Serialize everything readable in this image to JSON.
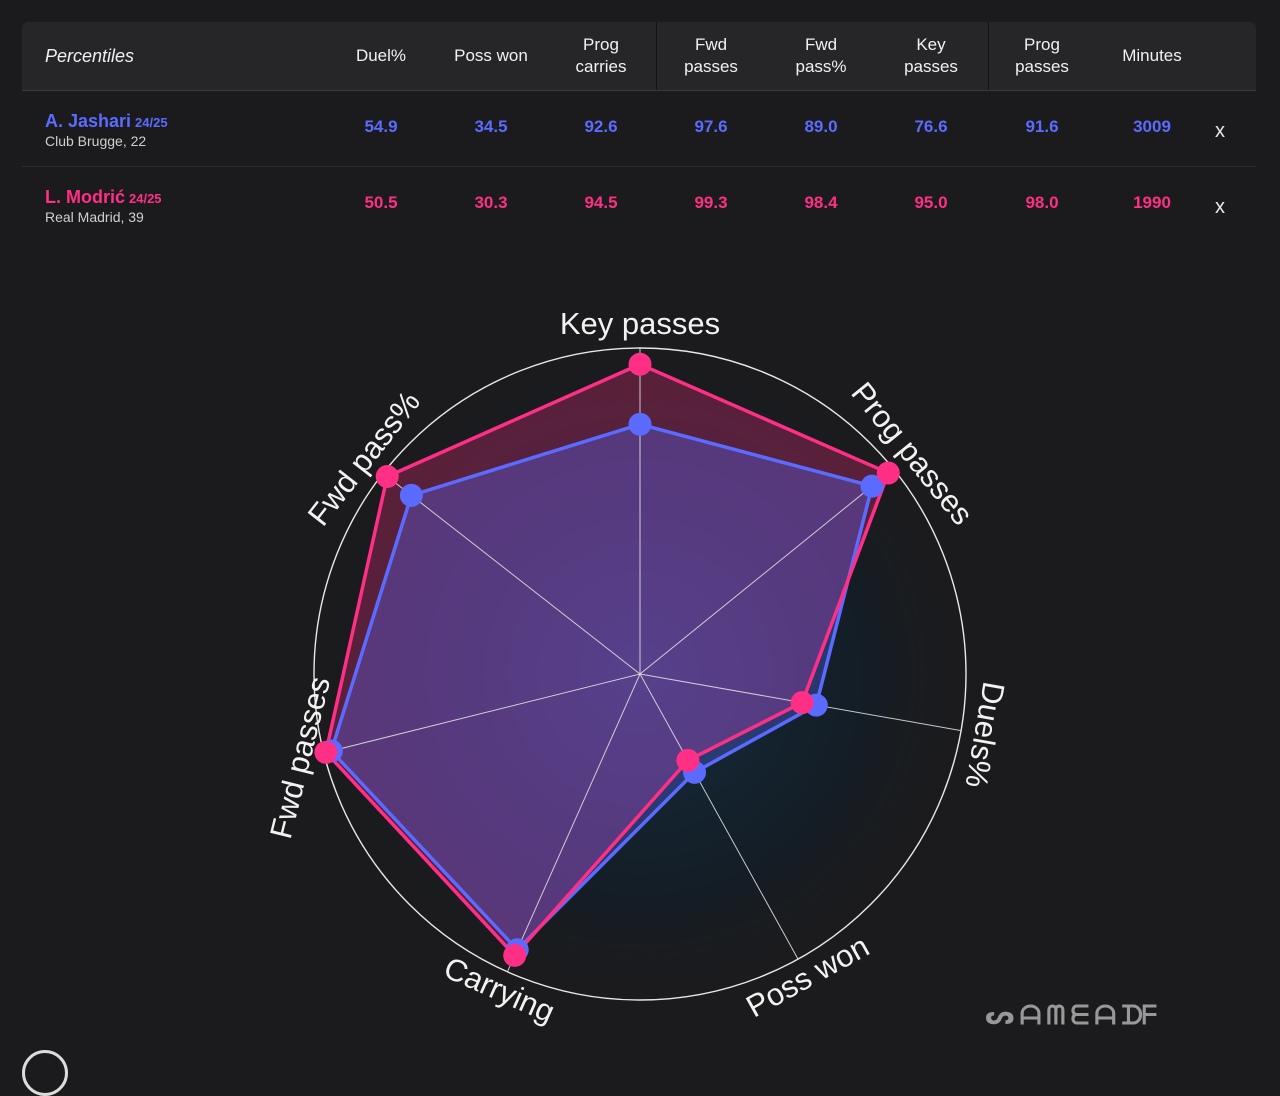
{
  "table": {
    "header_label": "Percentiles",
    "columns": [
      "Duel%",
      "Poss won",
      "Prog\ncarries",
      "Fwd\npasses",
      "Fwd\npass%",
      "Key\npasses",
      "Prog\npasses",
      "Minutes"
    ],
    "players": [
      {
        "name": "A. Jashari",
        "season": "24/25",
        "team": "Club Brugge, 22",
        "color": "#5b6bff",
        "values": [
          "54.9",
          "34.5",
          "92.6",
          "97.6",
          "89.0",
          "76.6",
          "91.6",
          "3009"
        ],
        "remove_label": "x"
      },
      {
        "name": "L. Modrić",
        "season": "24/25",
        "team": "Real Madrid, 39",
        "color": "#ff2f86",
        "values": [
          "50.5",
          "30.3",
          "94.5",
          "99.3",
          "98.4",
          "95.0",
          "98.0",
          "1990"
        ],
        "remove_label": "x"
      }
    ]
  },
  "chart_data": {
    "type": "radar",
    "axes": [
      "Key passes",
      "Prog passes",
      "Duels%",
      "Poss won",
      "Carrying",
      "Fwd passes",
      "Fwd pass%"
    ],
    "range": [
      0,
      100
    ],
    "series": [
      {
        "name": "A. Jashari",
        "color": "#5b6bff",
        "values": [
          76.6,
          91.6,
          54.9,
          34.5,
          92.6,
          97.6,
          89.0
        ]
      },
      {
        "name": "L. Modrić",
        "color": "#ff2f86",
        "values": [
          95.0,
          98.0,
          50.5,
          30.3,
          94.5,
          99.3,
          98.4
        ]
      }
    ]
  },
  "watermark": "ᔕ ᗩ ᗰ ᗴ ᗩ ᗪᖴ"
}
